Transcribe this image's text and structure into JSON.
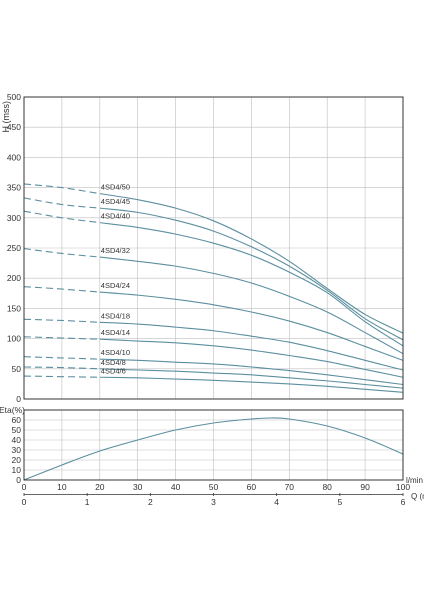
{
  "colors": {
    "curve": "#5b8fa0",
    "grid": "#bfbfbf",
    "frame": "#333333",
    "text": "#333333"
  },
  "chart_data": [
    {
      "type": "line",
      "ylabel": "H (mss)",
      "xlim": [
        0,
        100
      ],
      "ylim": [
        0,
        500
      ],
      "yticks": [
        0,
        50,
        100,
        150,
        200,
        250,
        300,
        350,
        400,
        450,
        500
      ],
      "grid": true,
      "dashed_segment_end_x": 20,
      "series": [
        {
          "name": "4SD4/50",
          "x": [
            0,
            10,
            20,
            30,
            40,
            50,
            60,
            70,
            80,
            90,
            100
          ],
          "y": [
            356,
            350,
            340,
            330,
            316,
            295,
            265,
            228,
            183,
            140,
            109
          ]
        },
        {
          "name": "4SD4/45",
          "x": [
            0,
            10,
            20,
            30,
            40,
            50,
            60,
            70,
            80,
            90,
            100
          ],
          "y": [
            333,
            322,
            316,
            309,
            296,
            278,
            252,
            220,
            180,
            133,
            98
          ]
        },
        {
          "name": "4SD4/40",
          "x": [
            0,
            10,
            20,
            30,
            40,
            50,
            60,
            70,
            80,
            90,
            100
          ],
          "y": [
            311,
            300,
            292,
            284,
            273,
            258,
            238,
            210,
            176,
            128,
            88
          ]
        },
        {
          "name": "4SD4/32",
          "x": [
            0,
            10,
            20,
            30,
            40,
            50,
            60,
            70,
            80,
            90,
            100
          ],
          "y": [
            249,
            241,
            235,
            228,
            220,
            208,
            192,
            170,
            144,
            110,
            75
          ]
        },
        {
          "name": "4SD4/24",
          "x": [
            0,
            10,
            20,
            30,
            40,
            50,
            60,
            70,
            80,
            90,
            100
          ],
          "y": [
            186,
            182,
            177,
            172,
            165,
            156,
            144,
            129,
            110,
            87,
            64
          ]
        },
        {
          "name": "4SD4/18",
          "x": [
            0,
            10,
            20,
            30,
            40,
            50,
            60,
            70,
            80,
            90,
            100
          ],
          "y": [
            132,
            130,
            127,
            124,
            119,
            113,
            104,
            94,
            80,
            64,
            48
          ]
        },
        {
          "name": "4SD4/14",
          "x": [
            0,
            10,
            20,
            30,
            40,
            50,
            60,
            70,
            80,
            90,
            100
          ],
          "y": [
            103,
            101,
            99,
            96,
            93,
            88,
            81,
            72,
            62,
            49,
            36
          ]
        },
        {
          "name": "4SD4/10",
          "x": [
            0,
            10,
            20,
            30,
            40,
            50,
            60,
            70,
            80,
            90,
            100
          ],
          "y": [
            70,
            68,
            66,
            64,
            61,
            58,
            53,
            47,
            40,
            32,
            24
          ]
        },
        {
          "name": "4SD4/8",
          "x": [
            0,
            10,
            20,
            30,
            40,
            50,
            60,
            70,
            80,
            90,
            100
          ],
          "y": [
            53,
            52,
            50,
            48,
            46,
            43,
            40,
            35,
            30,
            24,
            18
          ]
        },
        {
          "name": "4SD4/6",
          "x": [
            0,
            10,
            20,
            30,
            40,
            50,
            60,
            70,
            80,
            90,
            100
          ],
          "y": [
            38,
            37,
            36,
            35,
            33,
            31,
            28,
            25,
            21,
            16,
            11
          ]
        }
      ]
    },
    {
      "type": "line",
      "ylabel": "Eta(%)",
      "xlabel": "l/min",
      "xlabel2": "Q (m³/h)",
      "xlim": [
        0,
        100
      ],
      "ylim": [
        0,
        70
      ],
      "yticks": [
        0,
        10,
        20,
        30,
        40,
        50,
        60
      ],
      "xticks": [
        0,
        10,
        20,
        30,
        40,
        50,
        60,
        70,
        80,
        90,
        100
      ],
      "x2ticks": [
        0,
        1,
        2,
        3,
        4,
        5,
        6
      ],
      "grid": true,
      "series": [
        {
          "x": [
            0,
            10,
            20,
            30,
            40,
            50,
            60,
            65,
            70,
            80,
            90,
            100
          ],
          "y": [
            0,
            15,
            29,
            40,
            50,
            57,
            61,
            62,
            61,
            54,
            42,
            26
          ]
        }
      ]
    }
  ]
}
